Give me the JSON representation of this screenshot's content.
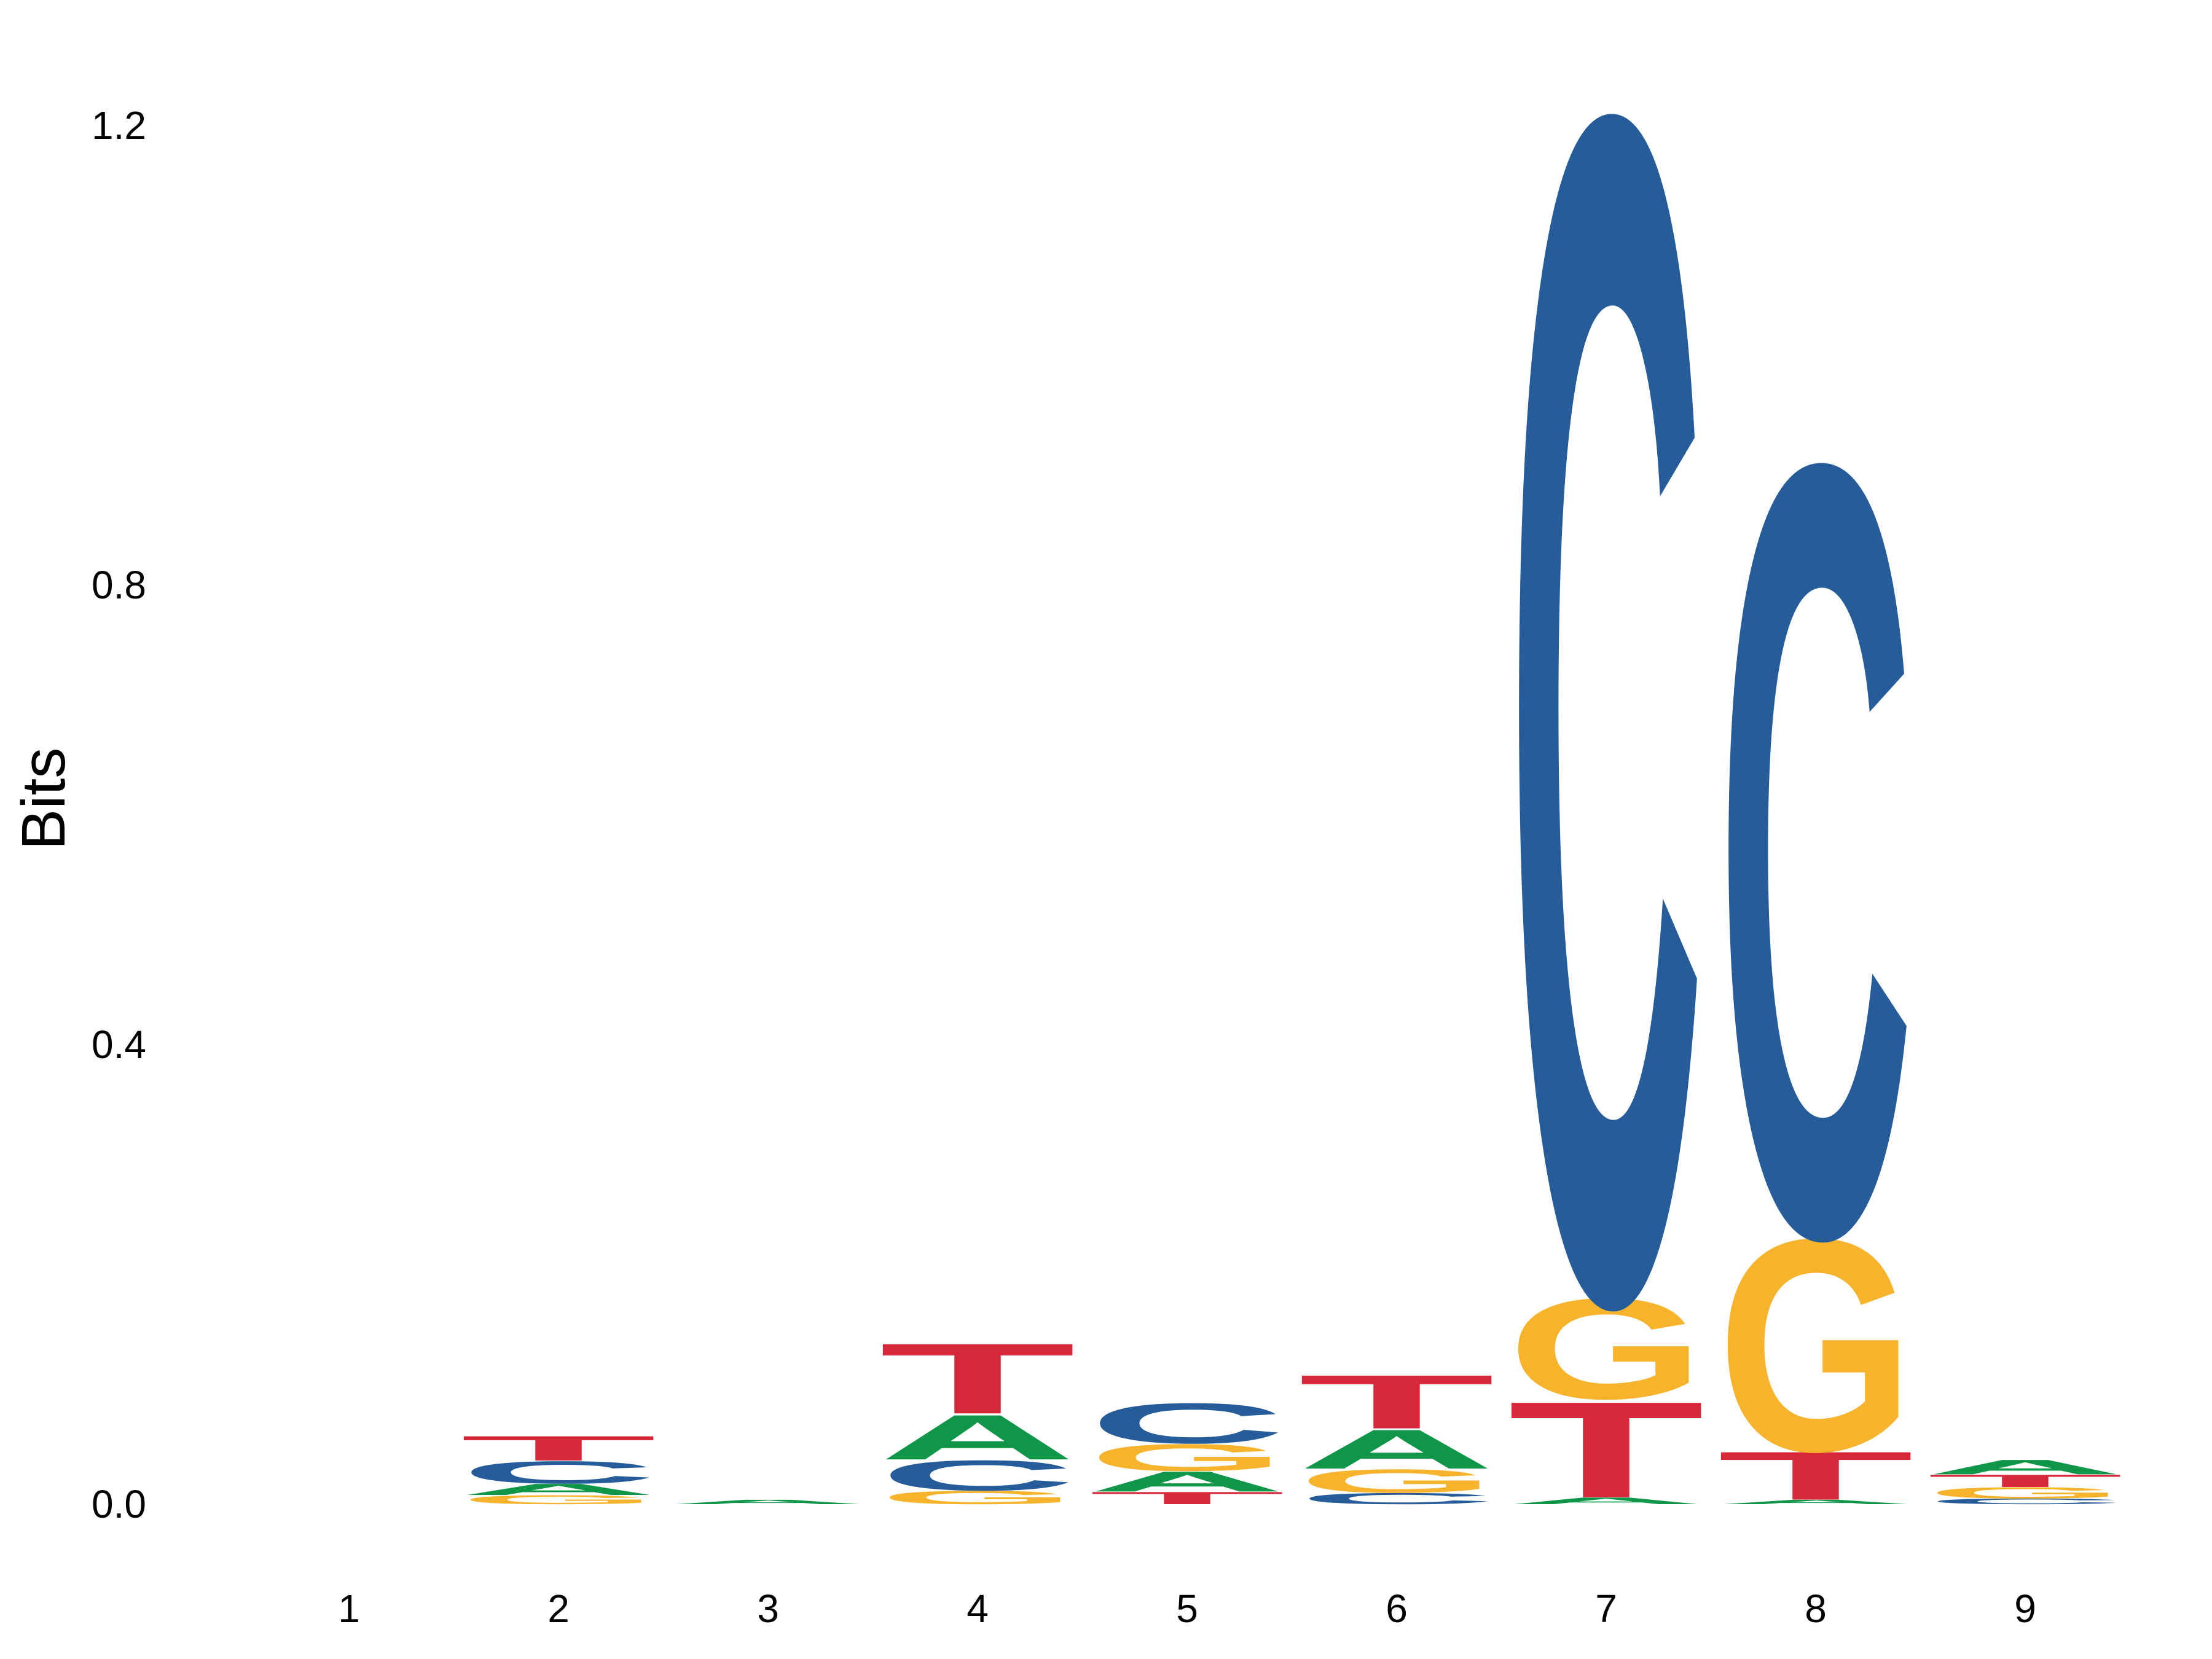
{
  "chart_data": {
    "type": "sequence-logo",
    "ylabel": "Bits",
    "ylim": [
      -0.05,
      1.25
    ],
    "yticks": [
      {
        "value": 0.0,
        "label": "0.0"
      },
      {
        "value": 0.4,
        "label": "0.4"
      },
      {
        "value": 0.8,
        "label": "0.8"
      },
      {
        "value": 1.2,
        "label": "1.2"
      }
    ],
    "positions": [
      {
        "label": "1",
        "stack": []
      },
      {
        "label": "2",
        "stack": [
          {
            "letter": "G",
            "bits": 0.008
          },
          {
            "letter": "A",
            "bits": 0.01
          },
          {
            "letter": "C",
            "bits": 0.02
          },
          {
            "letter": "T",
            "bits": 0.022
          }
        ]
      },
      {
        "label": "3",
        "stack": [
          {
            "letter": "A",
            "bits": 0.004
          }
        ]
      },
      {
        "label": "4",
        "stack": [
          {
            "letter": "G",
            "bits": 0.012
          },
          {
            "letter": "C",
            "bits": 0.027
          },
          {
            "letter": "A",
            "bits": 0.04
          },
          {
            "letter": "T",
            "bits": 0.063
          }
        ]
      },
      {
        "label": "5",
        "stack": [
          {
            "letter": "T",
            "bits": 0.011
          },
          {
            "letter": "A",
            "bits": 0.018
          },
          {
            "letter": "G",
            "bits": 0.024
          },
          {
            "letter": "C",
            "bits": 0.036
          }
        ]
      },
      {
        "label": "6",
        "stack": [
          {
            "letter": "C",
            "bits": 0.01
          },
          {
            "letter": "G",
            "bits": 0.021
          },
          {
            "letter": "A",
            "bits": 0.035
          },
          {
            "letter": "T",
            "bits": 0.048
          }
        ]
      },
      {
        "label": "7",
        "stack": [
          {
            "letter": "A",
            "bits": 0.006
          },
          {
            "letter": "T",
            "bits": 0.086
          },
          {
            "letter": "G",
            "bits": 0.09
          },
          {
            "letter": "C",
            "bits": 1.06
          }
        ]
      },
      {
        "label": "8",
        "stack": [
          {
            "letter": "A",
            "bits": 0.004
          },
          {
            "letter": "T",
            "bits": 0.043
          },
          {
            "letter": "G",
            "bits": 0.19
          },
          {
            "letter": "C",
            "bits": 0.69
          }
        ]
      },
      {
        "label": "9",
        "stack": [
          {
            "letter": "C",
            "bits": 0.005
          },
          {
            "letter": "G",
            "bits": 0.01
          },
          {
            "letter": "T",
            "bits": 0.011
          },
          {
            "letter": "A",
            "bits": 0.013
          }
        ]
      }
    ],
    "colors": {
      "A": "#109648",
      "C": "#255c99",
      "G": "#f7b32b",
      "T": "#d62839"
    },
    "grid": false,
    "legend": "none"
  }
}
